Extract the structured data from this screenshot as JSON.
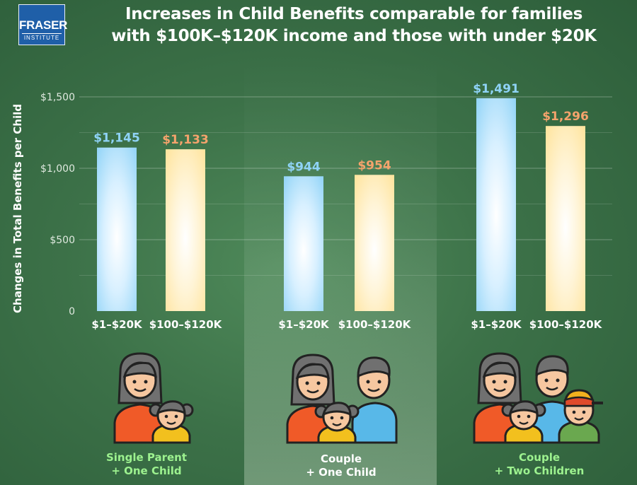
{
  "logo": {
    "line1": "FRASER",
    "line2": "INSTITUTE"
  },
  "title": {
    "line1": "Increases in Child Benefits comparable for families",
    "line2": "with $100K–$120K income and those with under $20K"
  },
  "colors": {
    "low_income": "#8fd3f7",
    "high_income": "#ffe6a6",
    "low_label": "#8fd3f7",
    "high_label": "#f5a36c"
  },
  "chart_data": {
    "type": "bar",
    "ylabel": "Changes in Total Benefits per Child",
    "ylim": [
      0,
      1500
    ],
    "yticks": [
      {
        "value": 0,
        "label": "0"
      },
      {
        "value": 500,
        "label": "$500"
      },
      {
        "value": 1000,
        "label": "$1,000"
      },
      {
        "value": 1500,
        "label": "$1,500"
      }
    ],
    "grid": true,
    "groups": [
      {
        "name": "Single Parent + One Child",
        "label_line1": "Single Parent",
        "label_line2": "+ One Child",
        "icon": "single-parent-one-child-icon",
        "bars": [
          {
            "category": "$1–$20K",
            "value": 1145,
            "label": "$1,145"
          },
          {
            "category": "$100–$120K",
            "value": 1133,
            "label": "$1,133"
          }
        ]
      },
      {
        "name": "Couple + One Child",
        "label_line1": "Couple",
        "label_line2": "+ One Child",
        "icon": "couple-one-child-icon",
        "bars": [
          {
            "category": "$1–$20K",
            "value": 944,
            "label": "$944"
          },
          {
            "category": "$100–$120K",
            "value": 954,
            "label": "$954"
          }
        ]
      },
      {
        "name": "Couple + Two Children",
        "label_line1": "Couple",
        "label_line2": "+ Two Children",
        "icon": "couple-two-children-icon",
        "bars": [
          {
            "category": "$1–$20K",
            "value": 1491,
            "label": "$1,491"
          },
          {
            "category": "$100–$120K",
            "value": 1296,
            "label": "$1,296"
          }
        ]
      }
    ]
  }
}
